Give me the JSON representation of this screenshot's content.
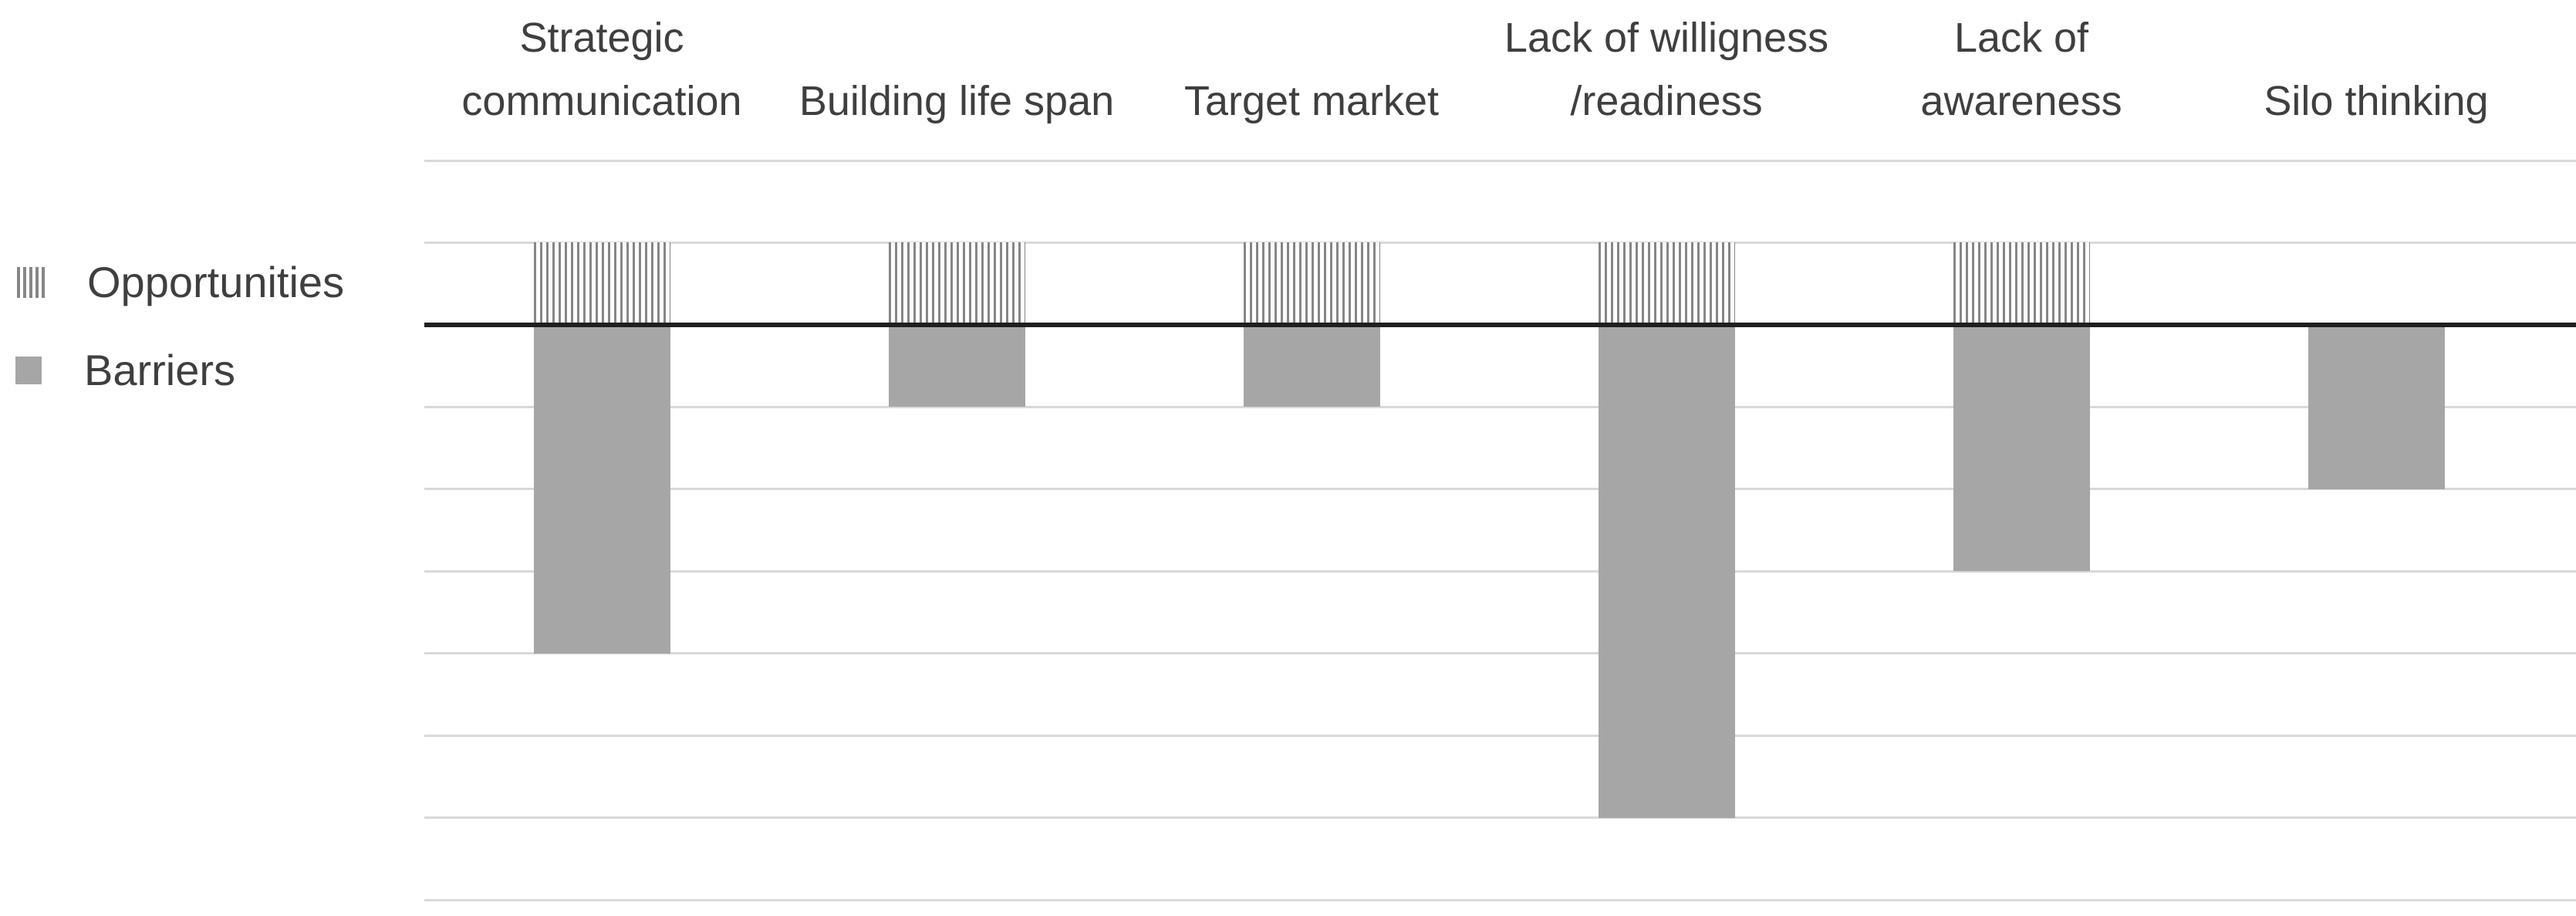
{
  "legend": {
    "items": [
      {
        "label": "Opportunities",
        "swatch": "striped"
      },
      {
        "label": "Barriers",
        "swatch": "solid"
      }
    ]
  },
  "colors": {
    "bar_fill": "#a6a6a6",
    "stripe_line": "#868686",
    "gridline": "#d9d9d9",
    "zero_line": "#1f1f1f",
    "text": "#3f3f3f",
    "background": "#ffffff"
  },
  "chart_data": {
    "type": "bar",
    "orientation": "vertical",
    "title": "",
    "xlabel": "",
    "ylabel": "",
    "categories": [
      "Strategic\ncommunication",
      "Building life span",
      "Target market",
      "Lack of willigness\n/readiness",
      "Lack of\nawareness",
      "Silo thinking"
    ],
    "series": [
      {
        "name": "Opportunities",
        "fill": "striped",
        "values": [
          1,
          1,
          1,
          1,
          1,
          0
        ]
      },
      {
        "name": "Barriers",
        "fill": "solid",
        "values": [
          -4,
          -1,
          -1,
          -6,
          -3,
          -2
        ]
      }
    ],
    "ylim": [
      -7,
      2
    ],
    "gridline_step": 1,
    "grid": true,
    "y_tick_labels_visible": false,
    "x_labels_position": "top",
    "legend_position": "left",
    "baseline": 0
  }
}
